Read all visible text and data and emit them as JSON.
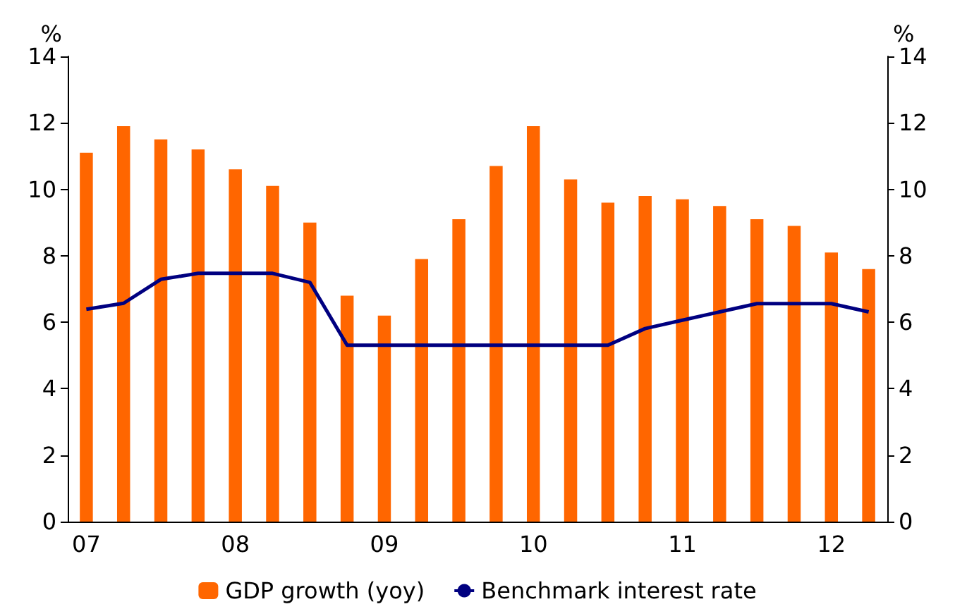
{
  "chart_data": {
    "type": "bar",
    "ylabel": "%",
    "y2label": "%",
    "categories": [
      "07",
      null,
      null,
      null,
      "08",
      null,
      null,
      null,
      "09",
      null,
      null,
      null,
      "10",
      null,
      null,
      null,
      "11",
      null,
      null,
      null,
      "12",
      null
    ],
    "series": [
      {
        "name": "GDP growth (yoy)",
        "color": "#ff6600",
        "values": [
          11.1,
          11.9,
          11.5,
          11.2,
          10.6,
          10.1,
          9.0,
          6.8,
          6.2,
          7.9,
          9.1,
          10.7,
          11.9,
          10.3,
          9.6,
          9.8,
          9.7,
          9.5,
          9.1,
          8.9,
          8.1,
          7.6
        ]
      },
      {
        "name": "Benchmark interest rate",
        "type": "line",
        "color": "#000080",
        "values": [
          6.39,
          6.57,
          7.29,
          7.47,
          7.47,
          7.47,
          7.2,
          5.31,
          5.31,
          5.31,
          5.31,
          5.31,
          5.31,
          5.31,
          5.31,
          5.81,
          6.06,
          6.31,
          6.56,
          6.56,
          6.56,
          6.31
        ]
      }
    ],
    "ylim": [
      0,
      14
    ],
    "yticks": [
      0,
      2,
      4,
      6,
      8,
      10,
      12,
      14
    ],
    "y2lim": [
      0,
      14
    ],
    "y2ticks": [
      0,
      2,
      4,
      6,
      8,
      10,
      12,
      14
    ],
    "grid": false,
    "legend": "bottom",
    "marker": "none",
    "line_style": "solid"
  }
}
